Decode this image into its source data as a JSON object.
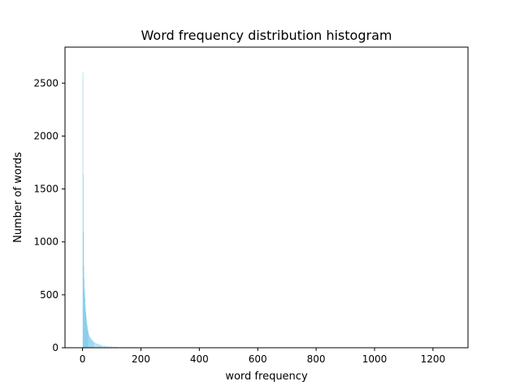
{
  "chart_data": {
    "type": "bar",
    "title": "Word frequency distribution histogram",
    "xlabel": "word frequency",
    "ylabel": "Number of words",
    "xlim": [
      -60,
      1320
    ],
    "ylim": [
      0,
      2840
    ],
    "xticks": [
      0,
      200,
      400,
      600,
      800,
      1000,
      1200
    ],
    "yticks": [
      0,
      500,
      1000,
      1500,
      2000,
      2500
    ],
    "grid": false,
    "bar_color": "#87ceeb",
    "series": [
      {
        "x": [
          1,
          2,
          3,
          4,
          5,
          6,
          7,
          8,
          9,
          10,
          11,
          12,
          13,
          14,
          15,
          16,
          17,
          18,
          19,
          20,
          22,
          24,
          26,
          28,
          30,
          32,
          34,
          36,
          38,
          40,
          43,
          46,
          49,
          52,
          55,
          58,
          61,
          64,
          67,
          70,
          74,
          78,
          82,
          86,
          90,
          95,
          100,
          105,
          110,
          115,
          120,
          130,
          140,
          150,
          160,
          170,
          180,
          190,
          200,
          215,
          230,
          245,
          260,
          275,
          290,
          310,
          330,
          350,
          370,
          390,
          420,
          450,
          480,
          520,
          560,
          600,
          650,
          700,
          760,
          820,
          900,
          980,
          1060,
          1150,
          1260
        ],
        "values": [
          2600,
          1640,
          1090,
          780,
          650,
          560,
          530,
          470,
          400,
          360,
          330,
          300,
          270,
          240,
          220,
          200,
          180,
          165,
          150,
          135,
          120,
          108,
          98,
          90,
          82,
          74,
          68,
          62,
          57,
          52,
          47,
          43,
          39,
          36,
          33,
          30,
          28,
          26,
          24,
          22,
          20,
          18,
          16,
          15,
          14,
          13,
          12,
          11,
          10,
          9,
          9,
          8,
          7,
          7,
          6,
          6,
          5,
          5,
          5,
          4,
          4,
          4,
          3,
          3,
          3,
          3,
          2,
          2,
          2,
          2,
          2,
          2,
          1,
          1,
          1,
          1,
          1,
          1,
          1,
          1,
          1,
          1,
          1,
          1,
          1
        ]
      }
    ]
  }
}
